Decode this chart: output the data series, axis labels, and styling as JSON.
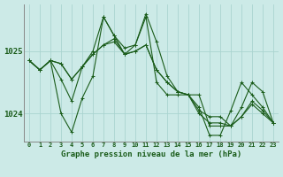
{
  "xlabel": "Graphe pression niveau de la mer (hPa)",
  "background_color": "#cceae7",
  "grid_color": "#aad4d0",
  "line_color": "#1a5c1a",
  "hours": [
    0,
    1,
    2,
    3,
    4,
    5,
    6,
    7,
    8,
    9,
    10,
    11,
    12,
    13,
    14,
    15,
    16,
    17,
    18,
    19,
    20,
    21,
    22,
    23
  ],
  "series": [
    [
      1024.85,
      1024.7,
      1024.85,
      1024.55,
      1024.2,
      1024.75,
      1025.0,
      1025.55,
      1025.25,
      1025.05,
      1025.1,
      1025.6,
      1025.15,
      1024.6,
      1024.35,
      1024.3,
      1024.3,
      1023.8,
      1023.8,
      1023.8,
      1024.1,
      1024.5,
      1024.35,
      1023.85
    ],
    [
      1024.85,
      1024.7,
      1024.85,
      1024.0,
      1023.7,
      1024.25,
      1024.6,
      1025.55,
      1025.25,
      1024.95,
      1025.1,
      1025.55,
      1024.5,
      1024.3,
      1024.3,
      1024.3,
      1024.1,
      1023.65,
      1023.65,
      1024.05,
      1024.5,
      1024.3,
      1024.1,
      1023.85
    ],
    [
      1024.85,
      1024.7,
      1024.85,
      1024.8,
      1024.55,
      1024.75,
      1024.95,
      1025.1,
      1025.2,
      1024.95,
      1025.0,
      1025.1,
      1024.7,
      1024.5,
      1024.35,
      1024.3,
      1024.05,
      1023.95,
      1023.95,
      1023.8,
      1023.95,
      1024.2,
      1024.05,
      1023.85
    ],
    [
      1024.85,
      1024.7,
      1024.85,
      1024.8,
      1024.55,
      1024.75,
      1024.95,
      1025.1,
      1025.15,
      1024.95,
      1025.0,
      1025.1,
      1024.7,
      1024.5,
      1024.35,
      1024.3,
      1024.0,
      1023.85,
      1023.85,
      1023.8,
      1023.95,
      1024.15,
      1024.0,
      1023.85
    ]
  ],
  "ylim": [
    1023.55,
    1025.75
  ],
  "yticks": [
    1024.0,
    1025.0
  ],
  "xlim": [
    -0.5,
    23.5
  ],
  "marker": "+",
  "markersize": 3,
  "linewidth": 0.8
}
